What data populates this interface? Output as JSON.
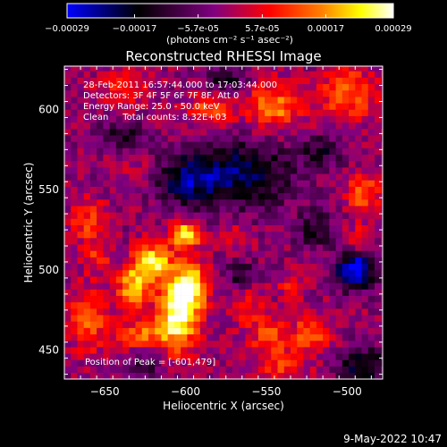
{
  "chart_data": {
    "type": "heatmap",
    "title": "Reconstructed RHESSI Image",
    "xlabel": "Heliocentric X (arcsec)",
    "ylabel": "Heliocentric Y (arcsec)",
    "xlim": [
      -675,
      -478
    ],
    "ylim": [
      432,
      627
    ],
    "xticks": [
      -650,
      -600,
      -550,
      -500
    ],
    "yticks": [
      450,
      500,
      550,
      600
    ],
    "colorbar": {
      "min": -0.00029,
      "max": 0.00029,
      "tick_values": [
        -0.00029,
        -0.00017,
        -5.7e-05,
        5.7e-05,
        0.00017,
        0.00029
      ],
      "tick_labels": [
        "-0.00029",
        "-0.00017",
        "-5.7e-05",
        "5.7e-05",
        "0.00017",
        "0.00029"
      ],
      "units": "(photons cm⁻² s⁻¹ asec⁻²)"
    },
    "annotations": [
      "28-Feb-2011 16:57:44.000 to 17:03:44.000",
      "Detectors: 3F 4F 5F 6F 7F 8F, Att 0",
      "Energy Range: 25.0 - 50.0 keV",
      "Clean     Total counts: 8.32E+03"
    ],
    "peak_label": "Position of Peak = [-601,479]",
    "peak_position": [
      -601,
      479
    ],
    "footer_date": "9-May-2022 10:47",
    "colormap": [
      "#0000ff",
      "#000000",
      "#800080",
      "#ff0000",
      "#ff8000",
      "#ffff00",
      "#ffffff"
    ],
    "hotspots": [
      {
        "x": -605,
        "y": 470,
        "sx": 9,
        "sy": 14,
        "amp": 0.0003
      },
      {
        "x": -598,
        "y": 490,
        "sx": 8,
        "sy": 10,
        "amp": 0.00028
      },
      {
        "x": -620,
        "y": 505,
        "sx": 8,
        "sy": 8,
        "amp": 0.00027
      },
      {
        "x": -632,
        "y": 490,
        "sx": 7,
        "sy": 9,
        "amp": 0.00022
      },
      {
        "x": -600,
        "y": 522,
        "sx": 7,
        "sy": 6,
        "amp": 0.00025
      },
      {
        "x": -628,
        "y": 460,
        "sx": 10,
        "sy": 6,
        "amp": 0.00015
      },
      {
        "x": -660,
        "y": 470,
        "sx": 9,
        "sy": 15,
        "amp": 0.00014
      },
      {
        "x": -660,
        "y": 530,
        "sx": 8,
        "sy": 10,
        "amp": 0.00012
      },
      {
        "x": -655,
        "y": 508,
        "sx": 6,
        "sy": 6,
        "amp": 0.0001
      },
      {
        "x": -545,
        "y": 602,
        "sx": 12,
        "sy": 10,
        "amp": 0.00018
      },
      {
        "x": -585,
        "y": 600,
        "sx": 10,
        "sy": 8,
        "amp": 0.00013
      },
      {
        "x": -500,
        "y": 610,
        "sx": 12,
        "sy": 12,
        "amp": 0.00016
      },
      {
        "x": -490,
        "y": 548,
        "sx": 7,
        "sy": 9,
        "amp": 0.00015
      },
      {
        "x": -492,
        "y": 520,
        "sx": 5,
        "sy": 5,
        "amp": 0.00012
      },
      {
        "x": -522,
        "y": 460,
        "sx": 9,
        "sy": 8,
        "amp": 0.00015
      },
      {
        "x": -548,
        "y": 458,
        "sx": 8,
        "sy": 8,
        "amp": 0.00013
      },
      {
        "x": -562,
        "y": 478,
        "sx": 8,
        "sy": 10,
        "amp": 0.0001
      },
      {
        "x": -535,
        "y": 490,
        "sx": 6,
        "sy": 6,
        "amp": 8e-05
      },
      {
        "x": -568,
        "y": 520,
        "sx": 6,
        "sy": 6,
        "amp": 7e-05
      },
      {
        "x": -640,
        "y": 612,
        "sx": 12,
        "sy": 8,
        "amp": 9e-05
      },
      {
        "x": -630,
        "y": 560,
        "sx": 8,
        "sy": 6,
        "amp": 6e-05
      },
      {
        "x": -540,
        "y": 440,
        "sx": 10,
        "sy": 6,
        "amp": 0.00012
      }
    ],
    "negative_regions": [
      {
        "x": -570,
        "y": 560,
        "sx": 25,
        "sy": 14,
        "amp": -0.0002
      },
      {
        "x": -600,
        "y": 555,
        "sx": 12,
        "sy": 10,
        "amp": -0.00012
      },
      {
        "x": -495,
        "y": 500,
        "sx": 8,
        "sy": 8,
        "amp": -0.0003
      },
      {
        "x": -565,
        "y": 495,
        "sx": 7,
        "sy": 7,
        "amp": -0.00012
      },
      {
        "x": -490,
        "y": 440,
        "sx": 10,
        "sy": 8,
        "amp": -0.00018
      },
      {
        "x": -520,
        "y": 525,
        "sx": 8,
        "sy": 8,
        "amp": -0.00012
      },
      {
        "x": -640,
        "y": 585,
        "sx": 10,
        "sy": 6,
        "amp": -0.0001
      },
      {
        "x": -575,
        "y": 618,
        "sx": 10,
        "sy": 6,
        "amp": -0.00012
      },
      {
        "x": -625,
        "y": 440,
        "sx": 8,
        "sy": 5,
        "amp": -0.0001
      },
      {
        "x": -515,
        "y": 575,
        "sx": 10,
        "sy": 7,
        "amp": -0.0001
      }
    ]
  }
}
